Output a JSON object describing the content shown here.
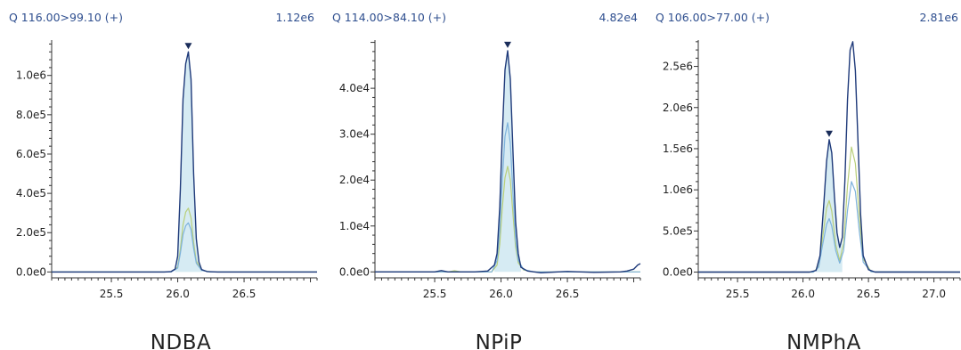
{
  "colors": {
    "header_text": "#2f4f8f",
    "trace_quant": "#1f3a7a",
    "trace_qual1": "#7db2dc",
    "trace_qual2": "#b9cf7a",
    "peak_fill": "#d6ebf3",
    "peak_marker": "#1a2d5a"
  },
  "chart_data": [
    {
      "type": "line",
      "transition": "Q 116.00>99.10 (+)",
      "max_intensity": "1.12e6",
      "compound": "NDBA",
      "xlim": [
        25.05,
        27.05
      ],
      "ylim": [
        -30000,
        1180000
      ],
      "xticks": [
        25.5,
        26.0,
        26.5
      ],
      "xtick_labels": [
        "25.5",
        "26.0",
        "26.5"
      ],
      "yticks": [
        0,
        200000,
        400000,
        600000,
        800000,
        1000000
      ],
      "ytick_labels": [
        "0.0e0",
        "2.0e5",
        "4.0e5",
        "6.0e5",
        "8.0e5",
        "1.0e6"
      ],
      "peak_marker": {
        "x": 26.08,
        "y": 1120000
      },
      "integration": [
        25.98,
        26.18
      ],
      "series": [
        {
          "role": "quant",
          "x": [
            25.05,
            25.9,
            25.95,
            25.98,
            26.0,
            26.02,
            26.04,
            26.06,
            26.08,
            26.1,
            26.12,
            26.14,
            26.16,
            26.18,
            26.22,
            26.3,
            27.05
          ],
          "y": [
            0,
            0,
            2000,
            15000,
            80000,
            420000,
            880000,
            1060000,
            1120000,
            980000,
            500000,
            170000,
            50000,
            12000,
            2000,
            0,
            0
          ]
        },
        {
          "role": "qual1",
          "x": [
            25.05,
            25.95,
            26.0,
            26.02,
            26.04,
            26.06,
            26.08,
            26.1,
            26.12,
            26.14,
            26.18,
            26.25,
            27.05
          ],
          "y": [
            0,
            0,
            20000,
            95000,
            190000,
            235000,
            250000,
            215000,
            120000,
            45000,
            8000,
            0,
            0
          ]
        },
        {
          "role": "qual2",
          "x": [
            25.05,
            25.95,
            26.0,
            26.02,
            26.04,
            26.06,
            26.08,
            26.1,
            26.12,
            26.14,
            26.18,
            26.25,
            27.05
          ],
          "y": [
            0,
            0,
            25000,
            115000,
            240000,
            305000,
            325000,
            275000,
            150000,
            55000,
            9000,
            0,
            0
          ]
        }
      ]
    },
    {
      "type": "line",
      "transition": "Q 114.00>84.10 (+)",
      "max_intensity": "4.82e4",
      "compound": "NPiP",
      "xlim": [
        25.05,
        27.05
      ],
      "ylim": [
        -1300,
        50500
      ],
      "xticks": [
        25.5,
        26.0,
        26.5
      ],
      "xtick_labels": [
        "25.5",
        "26.0",
        "26.5"
      ],
      "yticks": [
        0,
        10000,
        20000,
        30000,
        40000
      ],
      "ytick_labels": [
        "0.0e0",
        "1.0e4",
        "2.0e4",
        "3.0e4",
        "4.0e4"
      ],
      "peak_marker": {
        "x": 26.05,
        "y": 48200
      },
      "integration": [
        25.95,
        26.15
      ],
      "series": [
        {
          "role": "quant",
          "x": [
            25.05,
            25.5,
            25.55,
            25.6,
            25.8,
            25.85,
            25.9,
            25.95,
            25.97,
            25.99,
            26.01,
            26.03,
            26.05,
            26.07,
            26.09,
            26.11,
            26.13,
            26.15,
            26.2,
            26.3,
            26.5,
            26.7,
            26.9,
            26.95,
            27.0,
            27.03,
            27.05
          ],
          "y": [
            0,
            0,
            300,
            0,
            0,
            100,
            200,
            1500,
            4000,
            14000,
            30000,
            44000,
            48200,
            42000,
            26000,
            11000,
            4000,
            1000,
            200,
            -200,
            100,
            -100,
            0,
            200,
            600,
            1500,
            1800
          ]
        },
        {
          "role": "qual1",
          "x": [
            25.05,
            25.93,
            25.97,
            25.99,
            26.01,
            26.03,
            26.05,
            26.07,
            26.09,
            26.11,
            26.13,
            26.17,
            26.25,
            27.05
          ],
          "y": [
            0,
            0,
            2500,
            9000,
            20000,
            29500,
            32500,
            28000,
            17000,
            7000,
            2500,
            500,
            0,
            0
          ]
        },
        {
          "role": "qual2",
          "x": [
            25.05,
            25.6,
            25.65,
            25.7,
            25.93,
            25.97,
            25.99,
            26.01,
            26.03,
            26.05,
            26.07,
            26.09,
            26.11,
            26.13,
            26.17,
            26.25,
            27.05
          ],
          "y": [
            0,
            0,
            250,
            0,
            0,
            1500,
            6000,
            14000,
            20500,
            23000,
            20000,
            12500,
            5500,
            2000,
            400,
            0,
            0
          ]
        }
      ]
    },
    {
      "type": "line",
      "transition": "Q 106.00>77.00 (+)",
      "max_intensity": "2.81e6",
      "compound": "NMPhA",
      "xlim": [
        25.2,
        27.2
      ],
      "ylim": [
        -70000,
        2820000
      ],
      "xticks": [
        25.5,
        26.0,
        26.5,
        27.0
      ],
      "xtick_labels": [
        "25.5",
        "26.0",
        "26.5",
        "27.0"
      ],
      "yticks": [
        0,
        500000,
        1000000,
        1500000,
        2000000,
        2500000
      ],
      "ytick_labels": [
        "0.0e0",
        "5.0e5",
        "1.0e6",
        "1.5e6",
        "2.0e6",
        "2.5e6"
      ],
      "peak_marker": {
        "x": 26.2,
        "y": 1610000
      },
      "integration": [
        26.1,
        26.3
      ],
      "series": [
        {
          "role": "quant",
          "x": [
            25.2,
            26.05,
            26.1,
            26.13,
            26.16,
            26.18,
            26.2,
            26.22,
            26.24,
            26.26,
            26.28,
            26.3,
            26.32,
            26.34,
            26.36,
            26.38,
            26.4,
            26.42,
            26.44,
            26.46,
            26.5,
            26.55,
            27.2
          ],
          "y": [
            0,
            0,
            20000,
            200000,
            850000,
            1350000,
            1610000,
            1450000,
            920000,
            480000,
            300000,
            420000,
            1100000,
            2100000,
            2700000,
            2800000,
            2450000,
            1600000,
            700000,
            200000,
            30000,
            0,
            0
          ]
        },
        {
          "role": "qual1",
          "x": [
            25.2,
            26.08,
            26.12,
            26.15,
            26.18,
            26.2,
            26.22,
            26.25,
            26.28,
            26.31,
            26.34,
            26.37,
            26.4,
            26.43,
            26.46,
            26.52,
            27.2
          ],
          "y": [
            0,
            0,
            60000,
            330000,
            580000,
            650000,
            560000,
            260000,
            110000,
            260000,
            750000,
            1100000,
            980000,
            500000,
            120000,
            5000,
            0
          ]
        },
        {
          "role": "qual2",
          "x": [
            25.2,
            26.08,
            26.12,
            26.15,
            26.18,
            26.2,
            26.22,
            26.25,
            26.28,
            26.31,
            26.34,
            26.37,
            26.4,
            26.43,
            26.46,
            26.52,
            27.2
          ],
          "y": [
            0,
            0,
            70000,
            420000,
            780000,
            870000,
            740000,
            330000,
            140000,
            350000,
            1050000,
            1520000,
            1320000,
            680000,
            160000,
            6000,
            0
          ]
        }
      ]
    }
  ]
}
